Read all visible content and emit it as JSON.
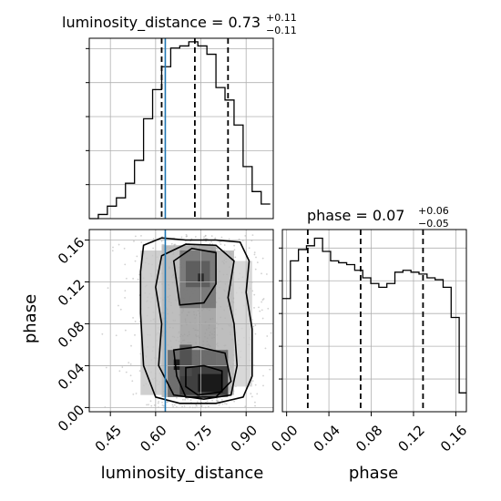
{
  "chart_data": {
    "type": "corner",
    "colors": {
      "truth": "#1f77b4",
      "hist": "#000000",
      "quantile": "#000000",
      "points": "#9a9a9a"
    },
    "truth": {
      "luminosity_distance": 0.632
    },
    "panels": [
      {
        "id": "hist_luminosity_distance",
        "type": "histogram",
        "parameter": "luminosity_distance",
        "title": "luminosity_distance = 0.73",
        "title_sup": "+0.11",
        "title_sub": "−0.11",
        "xlim": [
          0.38,
          0.99
        ],
        "bin_edges": [
          0.38,
          0.41,
          0.44,
          0.47,
          0.5,
          0.53,
          0.56,
          0.59,
          0.62,
          0.65,
          0.68,
          0.71,
          0.74,
          0.77,
          0.8,
          0.83,
          0.86,
          0.89,
          0.92,
          0.95,
          0.98
        ],
        "counts": [
          0,
          2,
          6,
          10,
          17,
          28,
          48,
          62,
          73,
          82,
          83,
          85,
          83,
          79,
          63,
          57,
          45,
          25,
          13,
          7
        ],
        "quantiles": [
          0.62,
          0.73,
          0.84
        ],
        "grid": true
      },
      {
        "id": "hist_phase",
        "type": "histogram",
        "parameter": "phase",
        "title": "phase = 0.07",
        "title_sup": "+0.06",
        "title_sub": "−0.05",
        "xlim": [
          -0.004,
          0.17
        ],
        "bin_edges": [
          -0.004,
          -0.0002,
          0.0036,
          0.0074,
          0.0112,
          0.015,
          0.0188,
          0.0226,
          0.0264,
          0.0302,
          0.034,
          0.0378,
          0.0416,
          0.0454,
          0.0492,
          0.053,
          0.0568,
          0.0606,
          0.0644,
          0.0682,
          0.072,
          0.0758,
          0.0796,
          0.0834,
          0.0872,
          0.091,
          0.0948,
          0.0986,
          0.1024,
          0.1062,
          0.11,
          0.1138,
          0.1176,
          0.1214,
          0.1252,
          0.129,
          0.1328,
          0.1366,
          0.1404,
          0.1442,
          0.148,
          0.1518,
          0.1556,
          0.1594,
          0.1632,
          0.167,
          0.17
        ],
        "counts": [
          60,
          60,
          80,
          80,
          86,
          86,
          88,
          88,
          92,
          92,
          85,
          85,
          80,
          80,
          79,
          79,
          78,
          78,
          75,
          75,
          71,
          71,
          68,
          68,
          66,
          66,
          68,
          68,
          74,
          74,
          75,
          75,
          74,
          74,
          73,
          73,
          71,
          71,
          70,
          70,
          66,
          66,
          50,
          50,
          10,
          10
        ],
        "quantiles": [
          0.02,
          0.07,
          0.129
        ],
        "grid": true
      },
      {
        "id": "scatter_luminosity_distance_phase",
        "type": "scatter_density",
        "xlabel": "luminosity_distance",
        "ylabel": "phase",
        "xlim": [
          0.38,
          0.99
        ],
        "ylim": [
          -0.004,
          0.17
        ],
        "x_ticks": [
          "0.45",
          "0.60",
          "0.75",
          "0.90"
        ],
        "x_tick_values": [
          0.45,
          0.6,
          0.75,
          0.9
        ],
        "y_ticks": [
          "0.00",
          "0.04",
          "0.08",
          "0.12",
          "0.16"
        ],
        "y_tick_values": [
          0.0,
          0.04,
          0.08,
          0.12,
          0.16
        ],
        "grid": true
      }
    ],
    "bottom_right_axis": {
      "xlabel": "phase",
      "x_ticks": [
        "0.00",
        "0.04",
        "0.08",
        "0.12",
        "0.16"
      ],
      "x_tick_values": [
        0.0,
        0.04,
        0.08,
        0.12,
        0.16
      ]
    }
  }
}
